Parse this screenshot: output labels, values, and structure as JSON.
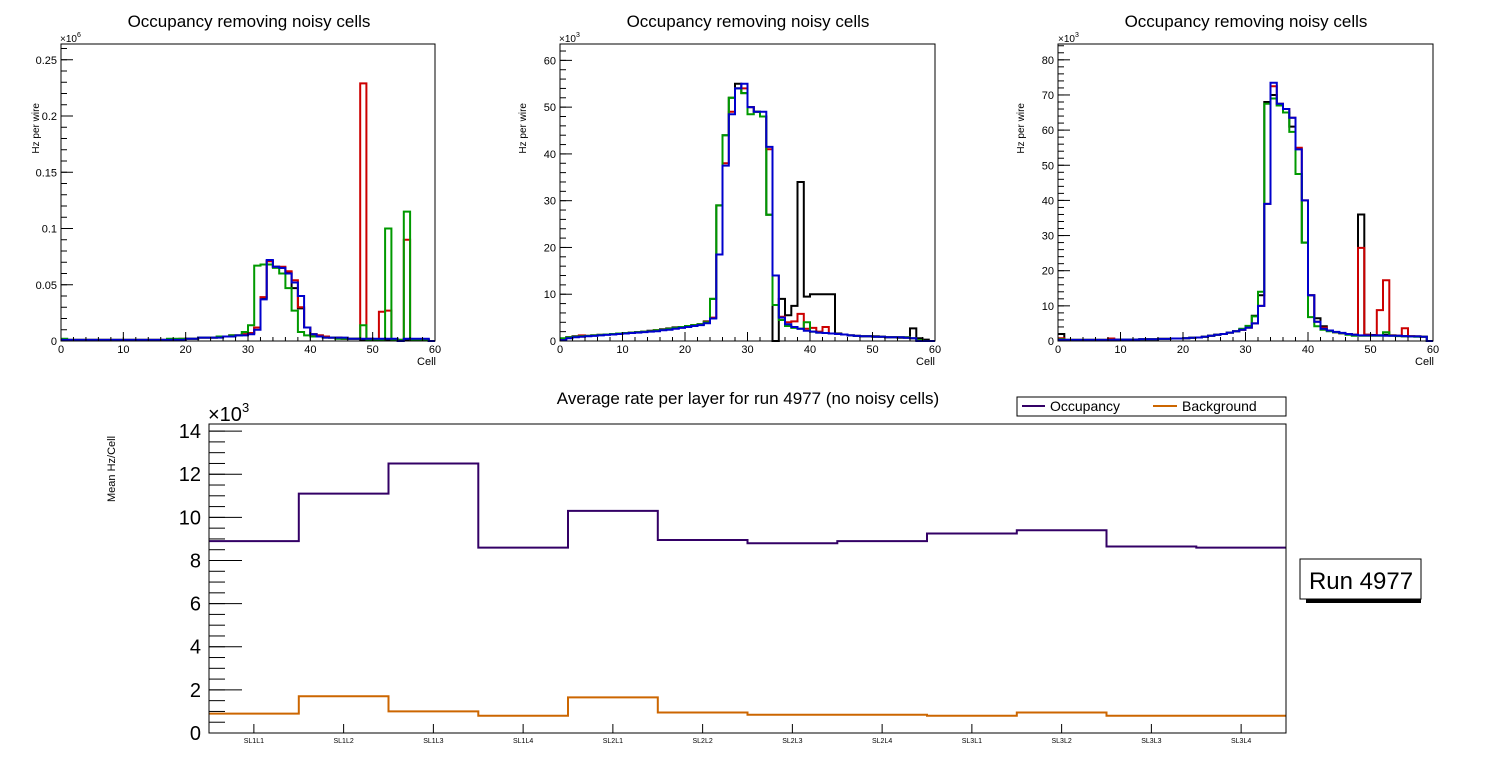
{
  "colors": {
    "black": "#000000",
    "red": "#cc0000",
    "green": "#009900",
    "blue": "#0000cc",
    "occupancy": "#330066",
    "background": "#cc6600"
  },
  "chart_data": [
    {
      "type": "line",
      "style": "step-histogram",
      "title": "Occupancy removing noisy cells",
      "xlabel": "Cell",
      "ylabel": "Hz per wire",
      "y_multiplier": "×10^6",
      "xlim": [
        0,
        60
      ],
      "ylim": [
        0,
        0.264
      ],
      "x_ticks": [
        0,
        10,
        20,
        30,
        40,
        50,
        60
      ],
      "y_ticks": [
        0,
        0.05,
        0.1,
        0.15,
        0.2,
        0.25
      ],
      "y_tick_labels": [
        "0",
        "0.05",
        "0.1",
        "0.15",
        "0.2",
        "0.25"
      ],
      "series": [
        {
          "name": "black",
          "color": "#000000",
          "values": [
            0.001,
            0.001,
            0.001,
            0.001,
            0.001,
            0.001,
            0.001,
            0.001,
            0.001,
            0.001,
            0.001,
            0.001,
            0.001,
            0.001,
            0.001,
            0.001,
            0.001,
            0.001,
            0.001,
            0.001,
            0.002,
            0.002,
            0.003,
            0.003,
            0.003,
            0.004,
            0.004,
            0.005,
            0.005,
            0.006,
            0.007,
            0.012,
            0.038,
            0.071,
            0.066,
            0.065,
            0.061,
            0.047,
            0.029,
            0.012,
            0.006,
            0.005,
            0.004,
            0.003,
            0.003,
            0.002,
            0.002,
            0.002,
            0.001,
            0.001,
            0.001,
            0.001,
            0.001,
            0.001,
            0.001,
            0.001,
            0.001,
            0.001,
            0.001,
            0.0
          ]
        },
        {
          "name": "red",
          "color": "#cc0000",
          "values": [
            0.001,
            0.001,
            0.001,
            0.001,
            0.001,
            0.001,
            0.001,
            0.001,
            0.001,
            0.001,
            0.001,
            0.001,
            0.001,
            0.001,
            0.001,
            0.001,
            0.001,
            0.001,
            0.001,
            0.002,
            0.002,
            0.002,
            0.003,
            0.003,
            0.003,
            0.004,
            0.004,
            0.005,
            0.005,
            0.006,
            0.007,
            0.012,
            0.039,
            0.071,
            0.066,
            0.066,
            0.062,
            0.054,
            0.03,
            0.012,
            0.006,
            0.005,
            0.004,
            0.003,
            0.003,
            0.002,
            0.002,
            0.002,
            0.229,
            0.002,
            0.001,
            0.026,
            0.027,
            0.001,
            0.001,
            0.09,
            0.001,
            0.001,
            0.001,
            0.0
          ]
        },
        {
          "name": "green",
          "color": "#009900",
          "values": [
            0.002,
            0.001,
            0.001,
            0.001,
            0.001,
            0.001,
            0.001,
            0.001,
            0.001,
            0.001,
            0.001,
            0.001,
            0.001,
            0.001,
            0.001,
            0.001,
            0.001,
            0.002,
            0.002,
            0.002,
            0.002,
            0.002,
            0.003,
            0.003,
            0.003,
            0.004,
            0.004,
            0.005,
            0.005,
            0.008,
            0.014,
            0.067,
            0.068,
            0.068,
            0.065,
            0.06,
            0.047,
            0.027,
            0.008,
            0.005,
            0.004,
            0.004,
            0.003,
            0.003,
            0.002,
            0.002,
            0.002,
            0.002,
            0.014,
            0.001,
            0.001,
            0.001,
            0.1,
            0.001,
            0.001,
            0.115,
            0.001,
            0.001,
            0.001,
            0.0
          ]
        },
        {
          "name": "blue",
          "color": "#0000cc",
          "values": [
            0.001,
            0.001,
            0.001,
            0.001,
            0.001,
            0.001,
            0.001,
            0.001,
            0.001,
            0.001,
            0.001,
            0.001,
            0.001,
            0.001,
            0.001,
            0.001,
            0.001,
            0.001,
            0.001,
            0.001,
            0.002,
            0.002,
            0.003,
            0.003,
            0.003,
            0.003,
            0.004,
            0.004,
            0.005,
            0.005,
            0.006,
            0.01,
            0.037,
            0.072,
            0.066,
            0.065,
            0.06,
            0.052,
            0.04,
            0.012,
            0.006,
            0.004,
            0.003,
            0.003,
            0.003,
            0.003,
            0.002,
            0.002,
            0.002,
            0.002,
            0.002,
            0.002,
            0.002,
            0.002,
            0.0,
            0.002,
            0.002,
            0.002,
            0.002,
            0.0
          ]
        }
      ]
    },
    {
      "type": "line",
      "style": "step-histogram",
      "title": "Occupancy removing noisy cells",
      "xlabel": "Cell",
      "ylabel": "Hz per wire",
      "y_multiplier": "×10^3",
      "xlim": [
        0,
        60
      ],
      "ylim": [
        0,
        63.5
      ],
      "x_ticks": [
        0,
        10,
        20,
        30,
        40,
        50,
        60
      ],
      "y_ticks": [
        0,
        10,
        20,
        30,
        40,
        50,
        60
      ],
      "y_tick_labels": [
        "0",
        "10",
        "20",
        "30",
        "40",
        "50",
        "60"
      ],
      "series": [
        {
          "name": "black",
          "color": "#000000",
          "values": [
            0.5,
            0.8,
            1.0,
            1.0,
            1.1,
            1.2,
            1.3,
            1.4,
            1.5,
            1.6,
            1.7,
            1.8,
            1.9,
            2.0,
            2.2,
            2.3,
            2.5,
            2.7,
            2.9,
            3.0,
            3.2,
            3.4,
            3.6,
            4.2,
            9.0,
            29,
            44,
            52,
            55,
            53,
            50,
            49,
            48,
            27,
            0,
            9.0,
            5.5,
            7.5,
            34,
            9.5,
            10,
            10,
            10,
            10,
            1.6,
            1.4,
            1.2,
            1.1,
            1.0,
            1.0,
            1.0,
            0.9,
            0.8,
            0.8,
            0.7,
            0.7,
            2.7,
            0.6,
            0.3,
            0.0
          ]
        },
        {
          "name": "red",
          "color": "#cc0000",
          "values": [
            0.5,
            0.8,
            0.9,
            1.2,
            1.1,
            1.2,
            1.3,
            1.4,
            1.5,
            1.6,
            1.7,
            1.8,
            1.9,
            2.0,
            2.1,
            2.3,
            2.4,
            2.6,
            2.8,
            3.0,
            3.2,
            3.4,
            3.6,
            4.1,
            5.0,
            18.5,
            38,
            49,
            54,
            54,
            50,
            49,
            48,
            41,
            14,
            5.2,
            4.0,
            4.2,
            5.8,
            2.6,
            2.8,
            2.0,
            3.0,
            1.6,
            1.5,
            1.4,
            1.2,
            1.1,
            1.0,
            1.0,
            0.9,
            0.9,
            0.8,
            0.8,
            0.8,
            0.8,
            0.6,
            0.2,
            0.0,
            0.0
          ]
        },
        {
          "name": "green",
          "color": "#009900",
          "values": [
            0.6,
            0.8,
            0.9,
            1.0,
            1.1,
            1.2,
            1.3,
            1.4,
            1.5,
            1.6,
            1.7,
            1.8,
            1.9,
            2.0,
            2.1,
            2.3,
            2.4,
            2.6,
            2.8,
            3.0,
            3.2,
            3.4,
            3.6,
            4.0,
            9.0,
            29,
            44,
            52,
            54,
            53,
            48.5,
            49,
            48,
            27,
            7.7,
            4.5,
            3.2,
            2.8,
            2.6,
            4.0,
            2.0,
            1.8,
            1.7,
            1.6,
            1.5,
            1.4,
            1.2,
            1.1,
            1.0,
            1.0,
            0.9,
            0.9,
            0.8,
            0.8,
            0.8,
            0.8,
            0.6,
            0.2,
            0.0,
            0.0
          ]
        },
        {
          "name": "blue",
          "color": "#0000cc",
          "values": [
            0.2,
            0.6,
            0.8,
            0.9,
            1.0,
            1.1,
            1.2,
            1.3,
            1.4,
            1.5,
            1.6,
            1.7,
            1.8,
            1.9,
            2.0,
            2.1,
            2.3,
            2.4,
            2.6,
            2.8,
            3.0,
            3.2,
            3.4,
            3.8,
            4.8,
            18.5,
            37.5,
            48.5,
            54,
            55,
            50,
            49,
            49,
            41.5,
            14,
            5.0,
            3.6,
            3.0,
            2.6,
            2.2,
            2.0,
            1.8,
            1.7,
            1.6,
            1.5,
            1.4,
            1.2,
            1.1,
            1.0,
            1.0,
            0.9,
            0.9,
            0.8,
            0.8,
            0.8,
            0.7,
            0.6,
            0.0,
            0.0,
            0.0
          ]
        }
      ]
    },
    {
      "type": "line",
      "style": "step-histogram",
      "title": "Occupancy removing noisy cells",
      "xlabel": "Cell",
      "ylabel": "Hz per wire",
      "y_multiplier": "×10^3",
      "xlim": [
        0,
        60
      ],
      "ylim": [
        0,
        84.5
      ],
      "x_ticks": [
        0,
        10,
        20,
        30,
        40,
        50,
        60
      ],
      "y_ticks": [
        0,
        10,
        20,
        30,
        40,
        50,
        60,
        70,
        80
      ],
      "y_tick_labels": [
        "0",
        "10",
        "20",
        "30",
        "40",
        "50",
        "60",
        "70",
        "80"
      ],
      "series": [
        {
          "name": "black",
          "color": "#000000",
          "values": [
            2.0,
            0.3,
            0.3,
            0.3,
            0.3,
            0.3,
            0.3,
            0.3,
            0.3,
            0.4,
            0.4,
            0.4,
            0.4,
            0.5,
            0.5,
            0.5,
            0.6,
            0.6,
            0.7,
            0.7,
            0.8,
            0.9,
            1.0,
            1.2,
            1.5,
            1.8,
            2.0,
            2.4,
            2.8,
            3.2,
            3.8,
            7.2,
            13,
            68,
            70,
            67,
            65,
            61,
            47.5,
            28,
            13,
            6.5,
            4.2,
            3.0,
            2.5,
            2.2,
            2.0,
            1.8,
            36,
            1.8,
            1.7,
            1.6,
            1.8,
            1.6,
            1.5,
            1.4,
            1.3,
            1.3,
            1.2,
            0.0
          ]
        },
        {
          "name": "red",
          "color": "#cc0000",
          "values": [
            0.8,
            0.3,
            0.3,
            0.3,
            0.3,
            0.3,
            0.3,
            0.3,
            0.7,
            0.4,
            0.4,
            0.4,
            0.4,
            0.5,
            0.5,
            0.5,
            0.6,
            0.6,
            0.7,
            0.7,
            0.8,
            0.9,
            1.0,
            1.2,
            1.5,
            1.8,
            2.0,
            2.4,
            2.8,
            3.2,
            3.8,
            5.0,
            10,
            39,
            72.5,
            67.5,
            66,
            63.5,
            55,
            40,
            13,
            5.5,
            3.8,
            3.0,
            2.5,
            2.2,
            2.0,
            1.8,
            26.5,
            1.8,
            1.6,
            8.8,
            17.3,
            1.6,
            1.5,
            3.6,
            1.4,
            1.3,
            1.2,
            0.0
          ]
        },
        {
          "name": "green",
          "color": "#009900",
          "values": [
            0.5,
            0.3,
            0.3,
            0.3,
            0.3,
            0.3,
            0.3,
            0.3,
            0.3,
            0.3,
            0.4,
            0.4,
            0.4,
            0.5,
            0.5,
            0.5,
            0.6,
            0.6,
            0.7,
            0.7,
            0.8,
            0.9,
            1.0,
            1.2,
            1.5,
            1.8,
            2.0,
            2.4,
            2.8,
            3.5,
            4.3,
            7.0,
            14,
            67.5,
            69,
            67,
            65,
            59.5,
            47.5,
            28,
            6.8,
            4.2,
            3.2,
            2.8,
            2.5,
            2.2,
            1.8,
            1.5,
            1.5,
            1.5,
            1.5,
            1.5,
            2.5,
            1.5,
            1.4,
            1.3,
            1.3,
            1.2,
            1.2,
            0.0
          ]
        },
        {
          "name": "blue",
          "color": "#0000cc",
          "values": [
            0.3,
            0.3,
            0.3,
            0.3,
            0.3,
            0.3,
            0.3,
            0.3,
            0.3,
            0.4,
            0.4,
            0.4,
            0.4,
            0.5,
            0.5,
            0.5,
            0.6,
            0.6,
            0.7,
            0.7,
            0.8,
            0.9,
            1.0,
            1.2,
            1.5,
            1.8,
            2.0,
            2.4,
            2.8,
            3.2,
            3.8,
            5.0,
            10,
            39,
            73.5,
            67.5,
            66,
            63.5,
            54.5,
            40,
            13,
            5.5,
            3.5,
            3.0,
            2.6,
            2.3,
            2.0,
            1.8,
            1.6,
            1.6,
            1.6,
            1.6,
            1.5,
            1.5,
            1.5,
            1.4,
            1.3,
            1.3,
            1.2,
            0.0
          ]
        }
      ]
    },
    {
      "type": "line",
      "style": "step-histogram",
      "title": "Average rate per layer for run 4977 (no noisy cells)",
      "xlabel": "",
      "ylabel": "Mean Hz/Cell",
      "y_multiplier": "×10^3",
      "categories": [
        "SL1L1",
        "SL1L2",
        "SL1L3",
        "SL1L4",
        "SL2L1",
        "SL2L2",
        "SL2L3",
        "SL2L4",
        "SL3L1",
        "SL3L2",
        "SL3L3",
        "SL3L4"
      ],
      "ylim": [
        0,
        14.33
      ],
      "y_ticks": [
        0,
        2,
        4,
        6,
        8,
        10,
        12,
        14
      ],
      "y_tick_labels": [
        "0",
        "2",
        "4",
        "6",
        "8",
        "10",
        "12",
        "14"
      ],
      "legend": {
        "position": "top-right",
        "entries": [
          "Occupancy",
          "Background"
        ]
      },
      "annotation": "Run 4977",
      "series": [
        {
          "name": "Occupancy",
          "color": "#330066",
          "values": [
            8.9,
            11.1,
            12.5,
            8.6,
            10.3,
            8.95,
            8.8,
            8.9,
            9.25,
            9.4,
            8.65,
            8.6
          ]
        },
        {
          "name": "Background",
          "color": "#cc6600",
          "values": [
            0.9,
            1.7,
            1.0,
            0.8,
            1.65,
            0.95,
            0.85,
            0.85,
            0.8,
            0.95,
            0.8,
            0.8
          ]
        }
      ]
    }
  ]
}
